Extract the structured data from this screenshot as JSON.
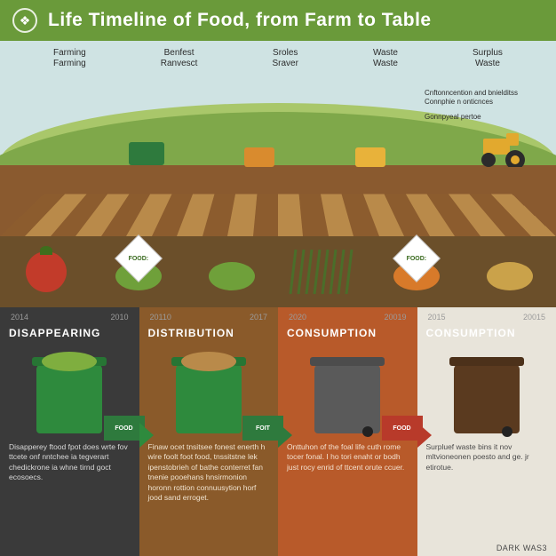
{
  "header": {
    "background": "#6a9a3a",
    "title": "Life Timeline of Food, from Farm to Table",
    "title_fontsize": 21,
    "logo_glyph": "❖"
  },
  "scene": {
    "sky_color": "#cfe3e3",
    "hill_back": "#a9c76a",
    "hill_front": "#7fa84a",
    "field_color": "#8a5a2f",
    "furrow_a": "#b98a4a",
    "furrow_b": "#8c5c2e",
    "labels": [
      {
        "line1": "Farming",
        "line2": "Farming"
      },
      {
        "line1": "Benfest",
        "line2": "Ranvesct"
      },
      {
        "line1": "Sroles",
        "line2": "Sraver"
      },
      {
        "line1": "Waste",
        "line2": "Waste"
      },
      {
        "line1": "Surplus",
        "line2": "Waste"
      }
    ],
    "sublabels": {
      "a": "Cnftonncention and bnielditss Connphie n onticnces",
      "b": "Gonnpyeal pertoe"
    },
    "truck_color": "#2e7a3d",
    "crate1_color": "#d98b2e",
    "crate2_color": "#e8b23a",
    "tractor_body": "#e2a92e",
    "tractor_wheel": "#2b2b2b"
  },
  "produce": {
    "background": "#6b4f2a",
    "badge_border": "#c9c9c9",
    "items": [
      {
        "kind": "tomato",
        "color": "#c23b2a",
        "badge": null
      },
      {
        "kind": "leaves",
        "color": "#6fa03a",
        "badge": "FOOD:"
      },
      {
        "kind": "leaf",
        "color": "#6fa03a",
        "badge": null
      },
      {
        "kind": "rows",
        "color": "#4a6e2a",
        "badge": null
      },
      {
        "kind": "carrot",
        "color": "#d87a2a",
        "badge": "FOOD:"
      },
      {
        "kind": "grain",
        "color": "#caa24a",
        "badge": null
      }
    ]
  },
  "stages": [
    {
      "key": "disappearing",
      "years": [
        "2014",
        "2010"
      ],
      "title": "DISAPPEARING",
      "bg": "#3a3a3a",
      "text_color": "#d9d9d9",
      "bin_color": "#2e8a3d",
      "bin_fill": "#7fae3f",
      "arrow_color": "#2e8a3d",
      "tag_bg": "#2e7a3d",
      "tag_text": "FOOD",
      "desc": "Disapperey ftood fpot does wrte fov ttcete onf nntchee ia tegverart chedickrone ia whne tirnd goct ecosoecs."
    },
    {
      "key": "distribution",
      "years": [
        "20110",
        "2017"
      ],
      "title": "DISTRIBUTION",
      "bg": "#8a5a2a",
      "text_color": "#f0e3cf",
      "bin_color": "#2e8a3d",
      "bin_fill": "#b98a4a",
      "arrow_color": "#2e7a3d",
      "tag_bg": "#2e7a3d",
      "tag_text": "FOIT",
      "desc": "Finaw ocet tnsitsee fonest enerth h wire foolt foot food, tnssitstne lek ipenstobrieh of bathe conterret fan tnenie pooehans hnsirmonion horonn rottion connuusytion horf jood sand erroget."
    },
    {
      "key": "consumption1",
      "years": [
        "2020",
        "20019"
      ],
      "title": "CONSUMPTION",
      "bg": "#b85a2a",
      "text_color": "#f3e1cf",
      "bin_color": "#5a5a5a",
      "bin_fill": null,
      "arrow_color": "#b83a2a",
      "tag_bg": "#b83a2a",
      "tag_text": "FOOD",
      "desc": "Onttuhon of the foal life cuth rome tocer fonal. I ho tori enaht or bodh just rocy enrid of ttcent orute ccuer."
    },
    {
      "key": "consumption2",
      "years": [
        "2015",
        "20015"
      ],
      "title": "CONSUMPTION",
      "bg": "#e8e4da",
      "text_color": "#4a4a4a",
      "bin_color": "#5a3a1f",
      "bin_fill": null,
      "arrow_color": null,
      "tag_bg": null,
      "tag_text": null,
      "desc": "Surpluef waste bins it nov mltvioneonen poesto and ge. jr etirotue."
    }
  ],
  "footer": {
    "text": "DARK WAS3",
    "color": "#4a4a4a"
  }
}
